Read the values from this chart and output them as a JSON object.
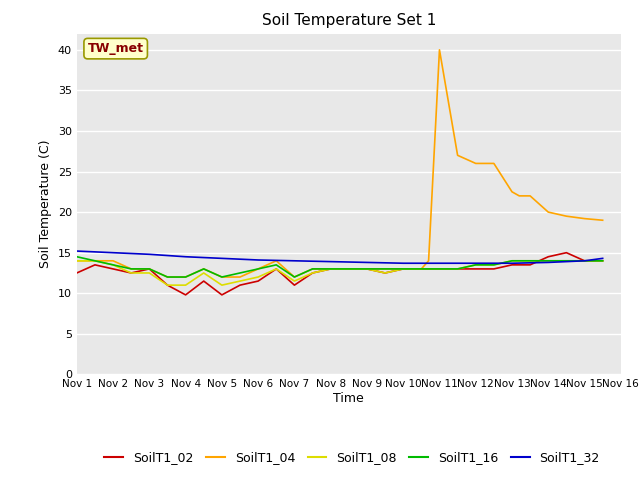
{
  "title": "Soil Temperature Set 1",
  "xlabel": "Time",
  "ylabel": "Soil Temperature (C)",
  "ylim": [
    0,
    42
  ],
  "yticks": [
    0,
    5,
    10,
    15,
    20,
    25,
    30,
    35,
    40
  ],
  "bg_color": "#e8e8e8",
  "annotation_text": "TW_met",
  "annotation_bg": "#ffffcc",
  "annotation_border": "#999900",
  "annotation_text_color": "#880000",
  "series": {
    "SoilT1_02": {
      "color": "#cc0000",
      "x": [
        1,
        1.5,
        2,
        2.5,
        3,
        3.5,
        4,
        4.5,
        5,
        5.5,
        6,
        6.5,
        7,
        7.5,
        8,
        8.5,
        9,
        9.5,
        10,
        10.5,
        11,
        11.5,
        12,
        12.5,
        13,
        13.5,
        14,
        14.5,
        15,
        15.5
      ],
      "y": [
        12.5,
        13.5,
        13.0,
        12.5,
        13.0,
        11.0,
        9.8,
        11.5,
        9.8,
        11.0,
        11.5,
        13.0,
        11.0,
        12.5,
        13.0,
        13.0,
        13.0,
        12.5,
        13.0,
        13.0,
        13.0,
        13.0,
        13.0,
        13.0,
        13.5,
        13.5,
        14.5,
        15.0,
        14.0,
        14.0
      ]
    },
    "SoilT1_04": {
      "color": "#ffa500",
      "x": [
        1,
        1.5,
        2,
        2.5,
        3,
        3.5,
        4,
        4.5,
        5,
        5.5,
        6,
        6.5,
        7,
        7.5,
        8,
        8.5,
        9,
        9.5,
        10,
        10.5,
        10.7,
        11.0,
        11.5,
        12.0,
        12.5,
        13.0,
        13.2,
        13.5,
        14.0,
        14.5,
        15.0,
        15.5
      ],
      "y": [
        14,
        14,
        14,
        13,
        13,
        12,
        12,
        13,
        12,
        12,
        13,
        14,
        12,
        13,
        13,
        13,
        13,
        13,
        13,
        13,
        14,
        40,
        27,
        26,
        26,
        22.5,
        22,
        22,
        20,
        19.5,
        19.2,
        19.0
      ]
    },
    "SoilT1_08": {
      "color": "#dddd00",
      "x": [
        1,
        1.5,
        2,
        2.5,
        3,
        3.5,
        4,
        4.5,
        5,
        5.5,
        6,
        6.5,
        7,
        7.5,
        8,
        8.5,
        9,
        9.5,
        10,
        10.5,
        11,
        11.5,
        12,
        12.5,
        13,
        13.5,
        14,
        14.5,
        15,
        15.5
      ],
      "y": [
        14.0,
        14.0,
        13.5,
        12.5,
        12.5,
        11.0,
        11.0,
        12.5,
        11.0,
        11.5,
        12.0,
        13.0,
        11.5,
        12.5,
        13.0,
        13.0,
        13.0,
        12.5,
        13.0,
        13.0,
        13.0,
        13.0,
        13.5,
        13.5,
        14.0,
        14.0,
        14.0,
        14.0,
        14.0,
        14.0
      ]
    },
    "SoilT1_16": {
      "color": "#00bb00",
      "x": [
        1,
        1.5,
        2,
        2.5,
        3,
        3.5,
        4,
        4.5,
        5,
        5.5,
        6,
        6.5,
        7,
        7.5,
        8,
        8.5,
        9,
        9.5,
        10,
        10.5,
        11,
        11.5,
        12,
        12.5,
        13,
        13.5,
        14,
        14.5,
        15,
        15.5
      ],
      "y": [
        14.5,
        14.0,
        13.5,
        13.0,
        13.0,
        12.0,
        12.0,
        13.0,
        12.0,
        12.5,
        13.0,
        13.5,
        12.0,
        13.0,
        13.0,
        13.0,
        13.0,
        13.0,
        13.0,
        13.0,
        13.0,
        13.0,
        13.5,
        13.5,
        14.0,
        14.0,
        14.0,
        14.0,
        14.0,
        14.0
      ]
    },
    "SoilT1_32": {
      "color": "#0000cc",
      "x": [
        1,
        2,
        3,
        4,
        5,
        6,
        7,
        8,
        9,
        10,
        11,
        12,
        13,
        14,
        15,
        15.5
      ],
      "y": [
        15.2,
        15.0,
        14.8,
        14.5,
        14.3,
        14.1,
        14.0,
        13.9,
        13.8,
        13.7,
        13.7,
        13.7,
        13.7,
        13.8,
        14.0,
        14.3
      ]
    }
  },
  "xtick_positions": [
    1,
    2,
    3,
    4,
    5,
    6,
    7,
    8,
    9,
    10,
    11,
    12,
    13,
    14,
    15,
    16
  ],
  "xtick_labels": [
    "Nov 1",
    "Nov 2",
    "Nov 3",
    "Nov 4",
    "Nov 5",
    "Nov 6",
    "Nov 7",
    "Nov 8",
    "Nov 9",
    "Nov 10",
    "Nov 11",
    "Nov 12",
    "Nov 13",
    "Nov 14",
    "Nov 15",
    "Nov 16"
  ]
}
